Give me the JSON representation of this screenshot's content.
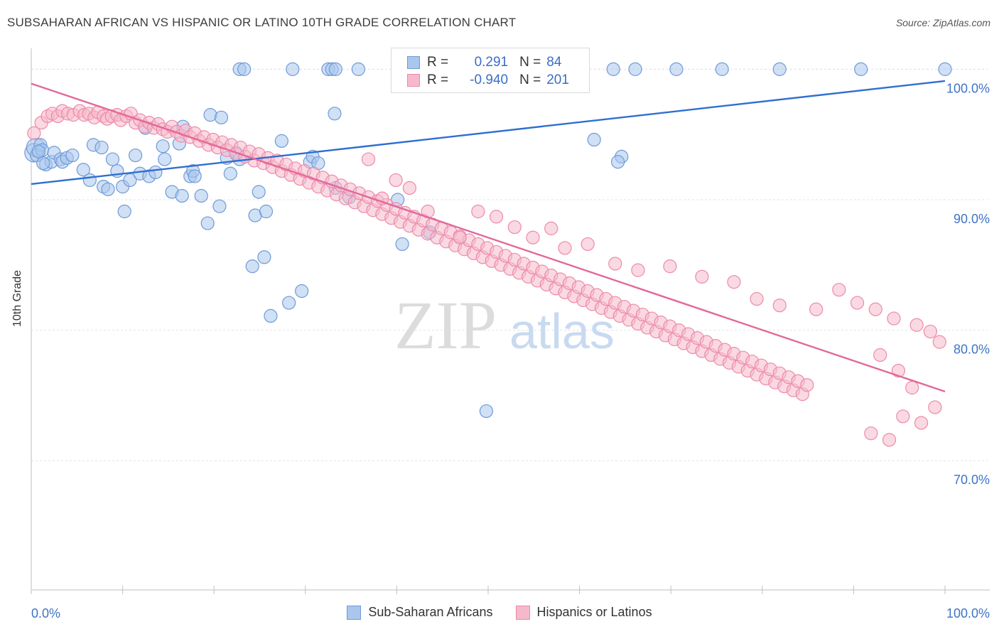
{
  "header": {
    "title": "SUBSAHARAN AFRICAN VS HISPANIC OR LATINO 10TH GRADE CORRELATION CHART",
    "source": "Source: ZipAtlas.com"
  },
  "watermark": {
    "zip": "ZIP",
    "atlas": "atlas"
  },
  "legend": {
    "r_label": "R =",
    "n_label": "N =",
    "rows": [
      {
        "r": "0.291",
        "n": "84"
      },
      {
        "r": "-0.940",
        "n": "201"
      }
    ]
  },
  "colors": {
    "blue_fill": "#a9c6ec",
    "blue_stroke": "#6f9ad8",
    "blue_line": "#2e6fd1",
    "pink_fill": "#f6b9cb",
    "pink_stroke": "#ec8aaa",
    "pink_line": "#e2699a",
    "tick_label": "#3f73c8"
  },
  "chart_data": {
    "type": "scatter",
    "title": "SUBSAHARAN AFRICAN VS HISPANIC OR LATINO 10TH GRADE CORRELATION CHART",
    "ylabel": "10th Grade",
    "xlabel": "",
    "x_tick_labels": [
      "0.0%",
      "100.0%"
    ],
    "y_tick_labels": [
      "100.0%",
      "90.0%",
      "80.0%",
      "70.0%"
    ],
    "y_ticks": [
      100,
      90,
      80,
      70
    ],
    "xlim": [
      0,
      100
    ],
    "ylim": [
      60.1,
      101.6
    ],
    "grid": true,
    "legend_position": "top-center",
    "series": [
      {
        "name": "Sub-Saharan Africans",
        "r": 0.291,
        "n": 84,
        "trend": {
          "x": [
            0,
            100
          ],
          "y": [
            91.2,
            99.1
          ]
        },
        "points": [
          [
            0.3,
            93.6
          ],
          [
            0.5,
            94.0
          ],
          [
            0.6,
            93.4
          ],
          [
            1.0,
            94.2
          ],
          [
            1.2,
            93.8
          ],
          [
            1.6,
            92.7
          ],
          [
            2.2,
            92.9
          ],
          [
            2.5,
            93.6
          ],
          [
            3.2,
            93.1
          ],
          [
            3.4,
            92.9
          ],
          [
            3.9,
            93.2
          ],
          [
            4.5,
            93.4
          ],
          [
            5.7,
            92.3
          ],
          [
            6.4,
            91.5
          ],
          [
            6.8,
            94.2
          ],
          [
            7.7,
            94.0
          ],
          [
            7.9,
            91.0
          ],
          [
            8.4,
            90.8
          ],
          [
            8.9,
            93.1
          ],
          [
            9.4,
            92.2
          ],
          [
            10.0,
            91.0
          ],
          [
            10.2,
            89.1
          ],
          [
            10.8,
            91.5
          ],
          [
            11.4,
            93.4
          ],
          [
            11.9,
            92.0
          ],
          [
            12.5,
            95.5
          ],
          [
            12.9,
            91.8
          ],
          [
            13.6,
            92.1
          ],
          [
            14.4,
            94.1
          ],
          [
            14.6,
            93.1
          ],
          [
            15.4,
            90.6
          ],
          [
            16.2,
            94.3
          ],
          [
            16.5,
            90.3
          ],
          [
            16.6,
            95.6
          ],
          [
            17.4,
            91.8
          ],
          [
            17.7,
            92.2
          ],
          [
            17.9,
            91.8
          ],
          [
            18.6,
            90.3
          ],
          [
            19.3,
            88.2
          ],
          [
            19.6,
            96.5
          ],
          [
            20.6,
            89.5
          ],
          [
            20.8,
            96.3
          ],
          [
            21.4,
            93.2
          ],
          [
            21.8,
            92.0
          ],
          [
            22.4,
            93.6
          ],
          [
            22.8,
            93.1
          ],
          [
            22.8,
            100.0
          ],
          [
            23.3,
            100.0
          ],
          [
            24.2,
            84.9
          ],
          [
            24.5,
            88.8
          ],
          [
            24.9,
            90.6
          ],
          [
            25.5,
            85.6
          ],
          [
            25.7,
            89.1
          ],
          [
            26.2,
            81.1
          ],
          [
            27.4,
            94.5
          ],
          [
            28.2,
            82.1
          ],
          [
            28.6,
            100.0
          ],
          [
            29.6,
            83.0
          ],
          [
            30.5,
            92.9
          ],
          [
            30.8,
            93.3
          ],
          [
            31.4,
            92.8
          ],
          [
            32.5,
            100.0
          ],
          [
            32.9,
            100.0
          ],
          [
            33.3,
            100.0
          ],
          [
            33.3,
            90.9
          ],
          [
            33.2,
            96.6
          ],
          [
            34.8,
            90.2
          ],
          [
            35.8,
            100.0
          ],
          [
            40.1,
            90.0
          ],
          [
            40.6,
            86.6
          ],
          [
            43.6,
            87.5
          ],
          [
            49.8,
            73.8
          ],
          [
            61.6,
            94.6
          ],
          [
            63.7,
            100.0
          ],
          [
            64.6,
            93.3
          ],
          [
            64.2,
            92.9
          ],
          [
            66.1,
            100.0
          ],
          [
            70.6,
            100.0
          ],
          [
            75.6,
            100.0
          ],
          [
            81.9,
            100.0
          ],
          [
            90.8,
            100.0
          ],
          [
            100.0,
            100.0
          ],
          [
            0.8,
            93.7
          ],
          [
            1.3,
            92.8
          ]
        ]
      },
      {
        "name": "Hispanics or Latinos",
        "r": -0.94,
        "n": 201,
        "trend": {
          "x": [
            0,
            100
          ],
          "y": [
            98.9,
            75.3
          ]
        },
        "points": [
          [
            0.3,
            95.1
          ],
          [
            1.1,
            95.9
          ],
          [
            1.8,
            96.4
          ],
          [
            2.3,
            96.6
          ],
          [
            2.9,
            96.4
          ],
          [
            3.4,
            96.8
          ],
          [
            4.0,
            96.6
          ],
          [
            4.6,
            96.5
          ],
          [
            5.3,
            96.8
          ],
          [
            5.8,
            96.5
          ],
          [
            6.3,
            96.6
          ],
          [
            6.9,
            96.3
          ],
          [
            7.3,
            96.7
          ],
          [
            7.9,
            96.4
          ],
          [
            8.3,
            96.2
          ],
          [
            8.8,
            96.4
          ],
          [
            9.4,
            96.5
          ],
          [
            9.8,
            96.1
          ],
          [
            10.4,
            96.4
          ],
          [
            10.9,
            96.6
          ],
          [
            11.4,
            95.9
          ],
          [
            11.9,
            96.1
          ],
          [
            12.4,
            95.6
          ],
          [
            12.9,
            95.9
          ],
          [
            13.4,
            95.5
          ],
          [
            13.9,
            95.8
          ],
          [
            14.4,
            95.4
          ],
          [
            14.9,
            95.2
          ],
          [
            15.4,
            95.6
          ],
          [
            15.9,
            95.2
          ],
          [
            16.4,
            94.9
          ],
          [
            16.9,
            95.3
          ],
          [
            17.4,
            94.8
          ],
          [
            17.9,
            95.1
          ],
          [
            18.4,
            94.5
          ],
          [
            18.9,
            94.8
          ],
          [
            19.4,
            94.2
          ],
          [
            19.9,
            94.6
          ],
          [
            20.4,
            94.0
          ],
          [
            20.9,
            94.4
          ],
          [
            21.4,
            93.8
          ],
          [
            21.9,
            94.2
          ],
          [
            22.4,
            93.5
          ],
          [
            22.9,
            94.0
          ],
          [
            23.4,
            93.3
          ],
          [
            23.9,
            93.7
          ],
          [
            24.4,
            93.0
          ],
          [
            24.9,
            93.5
          ],
          [
            25.4,
            92.8
          ],
          [
            25.9,
            93.2
          ],
          [
            26.4,
            92.5
          ],
          [
            26.9,
            93.0
          ],
          [
            27.4,
            92.2
          ],
          [
            27.9,
            92.7
          ],
          [
            28.4,
            91.9
          ],
          [
            28.9,
            92.4
          ],
          [
            29.4,
            91.6
          ],
          [
            29.9,
            92.2
          ],
          [
            30.4,
            91.3
          ],
          [
            30.9,
            92.0
          ],
          [
            31.4,
            91.0
          ],
          [
            31.9,
            91.7
          ],
          [
            32.4,
            90.7
          ],
          [
            32.9,
            91.4
          ],
          [
            33.4,
            90.4
          ],
          [
            33.9,
            91.1
          ],
          [
            34.4,
            90.1
          ],
          [
            34.9,
            90.8
          ],
          [
            35.4,
            89.8
          ],
          [
            35.9,
            90.5
          ],
          [
            36.4,
            89.5
          ],
          [
            36.9,
            90.2
          ],
          [
            37.4,
            89.2
          ],
          [
            37.9,
            89.9
          ],
          [
            38.4,
            88.9
          ],
          [
            38.9,
            89.6
          ],
          [
            39.4,
            88.6
          ],
          [
            39.9,
            89.3
          ],
          [
            40.4,
            88.3
          ],
          [
            40.9,
            89.0
          ],
          [
            41.4,
            88.0
          ],
          [
            41.9,
            88.7
          ],
          [
            42.4,
            87.7
          ],
          [
            42.9,
            88.4
          ],
          [
            43.4,
            87.4
          ],
          [
            43.9,
            88.1
          ],
          [
            44.4,
            87.1
          ],
          [
            44.9,
            87.8
          ],
          [
            45.4,
            86.8
          ],
          [
            45.9,
            87.5
          ],
          [
            46.4,
            86.5
          ],
          [
            46.9,
            87.2
          ],
          [
            47.4,
            86.2
          ],
          [
            47.9,
            86.9
          ],
          [
            48.4,
            85.9
          ],
          [
            48.9,
            86.6
          ],
          [
            49.4,
            85.6
          ],
          [
            49.9,
            86.3
          ],
          [
            50.4,
            85.3
          ],
          [
            50.9,
            86.0
          ],
          [
            51.4,
            85.0
          ],
          [
            51.9,
            85.7
          ],
          [
            52.4,
            84.7
          ],
          [
            52.9,
            85.4
          ],
          [
            53.4,
            84.4
          ],
          [
            53.9,
            85.1
          ],
          [
            54.4,
            84.1
          ],
          [
            54.9,
            84.8
          ],
          [
            55.4,
            83.8
          ],
          [
            55.9,
            84.5
          ],
          [
            56.4,
            83.5
          ],
          [
            56.9,
            84.2
          ],
          [
            57.4,
            83.2
          ],
          [
            57.9,
            83.9
          ],
          [
            58.4,
            82.9
          ],
          [
            58.9,
            83.6
          ],
          [
            59.4,
            82.6
          ],
          [
            59.9,
            83.3
          ],
          [
            60.4,
            82.3
          ],
          [
            60.9,
            83.0
          ],
          [
            61.4,
            82.0
          ],
          [
            61.9,
            82.7
          ],
          [
            62.4,
            81.7
          ],
          [
            62.9,
            82.4
          ],
          [
            63.4,
            81.4
          ],
          [
            63.9,
            82.1
          ],
          [
            64.4,
            81.1
          ],
          [
            64.9,
            81.8
          ],
          [
            65.4,
            80.8
          ],
          [
            65.9,
            81.5
          ],
          [
            66.4,
            80.5
          ],
          [
            66.9,
            81.2
          ],
          [
            67.4,
            80.2
          ],
          [
            67.9,
            80.9
          ],
          [
            68.4,
            79.9
          ],
          [
            68.9,
            80.6
          ],
          [
            69.4,
            79.6
          ],
          [
            69.9,
            80.3
          ],
          [
            70.4,
            79.3
          ],
          [
            70.9,
            80.0
          ],
          [
            71.4,
            79.0
          ],
          [
            71.9,
            79.7
          ],
          [
            72.4,
            78.7
          ],
          [
            72.9,
            79.4
          ],
          [
            73.4,
            78.4
          ],
          [
            73.9,
            79.1
          ],
          [
            74.4,
            78.1
          ],
          [
            74.9,
            78.8
          ],
          [
            75.4,
            77.8
          ],
          [
            75.9,
            78.5
          ],
          [
            76.4,
            77.5
          ],
          [
            76.9,
            78.2
          ],
          [
            77.4,
            77.2
          ],
          [
            77.9,
            77.9
          ],
          [
            78.4,
            76.9
          ],
          [
            78.9,
            77.6
          ],
          [
            79.4,
            76.6
          ],
          [
            79.9,
            77.3
          ],
          [
            80.4,
            76.3
          ],
          [
            80.9,
            77.0
          ],
          [
            81.4,
            76.0
          ],
          [
            81.9,
            76.7
          ],
          [
            82.4,
            75.7
          ],
          [
            82.9,
            76.4
          ],
          [
            83.4,
            75.4
          ],
          [
            83.9,
            76.1
          ],
          [
            84.4,
            75.1
          ],
          [
            84.9,
            75.8
          ],
          [
            36.9,
            93.1
          ],
          [
            38.4,
            90.1
          ],
          [
            39.9,
            91.5
          ],
          [
            41.4,
            90.9
          ],
          [
            43.4,
            89.1
          ],
          [
            46.9,
            87.1
          ],
          [
            48.9,
            89.1
          ],
          [
            50.9,
            88.7
          ],
          [
            52.9,
            87.9
          ],
          [
            54.9,
            87.1
          ],
          [
            56.9,
            87.8
          ],
          [
            58.4,
            86.3
          ],
          [
            60.9,
            86.6
          ],
          [
            63.9,
            85.1
          ],
          [
            66.4,
            84.6
          ],
          [
            69.9,
            84.9
          ],
          [
            73.4,
            84.1
          ],
          [
            76.9,
            83.7
          ],
          [
            79.4,
            82.4
          ],
          [
            81.9,
            81.9
          ],
          [
            85.9,
            81.6
          ],
          [
            88.4,
            83.1
          ],
          [
            90.4,
            82.1
          ],
          [
            92.4,
            81.6
          ],
          [
            94.4,
            80.9
          ],
          [
            96.9,
            80.4
          ],
          [
            98.4,
            79.9
          ],
          [
            99.4,
            79.1
          ],
          [
            92.9,
            78.1
          ],
          [
            94.9,
            76.9
          ],
          [
            96.4,
            75.6
          ],
          [
            98.9,
            74.1
          ],
          [
            95.4,
            73.4
          ],
          [
            97.4,
            72.9
          ],
          [
            91.9,
            72.1
          ],
          [
            93.9,
            71.6
          ]
        ]
      }
    ]
  }
}
